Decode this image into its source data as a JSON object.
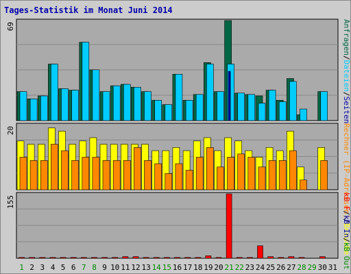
{
  "colors": {
    "frame": "#cccccc",
    "plot_bg": "#aaaaaa",
    "title": "#0000aa",
    "axis_text": "#000000",
    "weekend_day": "#008800",
    "hits": "#006644",
    "files": "#00ccff",
    "pages": "#0000aa",
    "visits": "#ffff00",
    "sites": "#ff8800",
    "kbytes": "#ff0000",
    "kb_in": "#0000aa",
    "kb_out": "#008800",
    "bar_edge": "#000000"
  },
  "chart_data": {
    "type": "bar",
    "title": "Tages-Statistik im Monat Juni 2014",
    "categories": [
      "1",
      "2",
      "3",
      "4",
      "5",
      "6",
      "7",
      "8",
      "9",
      "10",
      "11",
      "12",
      "13",
      "14",
      "15",
      "16",
      "17",
      "18",
      "19",
      "20",
      "21",
      "22",
      "23",
      "24",
      "25",
      "26",
      "27",
      "28",
      "29",
      "30",
      "31"
    ],
    "weekend_days": [
      "1",
      "7",
      "8",
      "14",
      "15",
      "21",
      "22",
      "28",
      "29"
    ],
    "panels": [
      {
        "name": "top",
        "ymax": 69,
        "ymax_label": "69",
        "legend_right": [
          "Anfragen",
          "/",
          "Dateien",
          "/",
          "Seiten"
        ],
        "series": [
          {
            "name": "Anfragen",
            "color": "#006644",
            "values": [
              20,
              15,
              17,
              39,
              22,
              21,
              54,
              35,
              20,
              24,
              25,
              23,
              20,
              14,
              11,
              32,
              14,
              18,
              40,
              20,
              69,
              19,
              18,
              17,
              21,
              14,
              29,
              4,
              0,
              20,
              0
            ]
          },
          {
            "name": "Dateien",
            "color": "#00ccff",
            "values": [
              20,
              15,
              17,
              39,
              22,
              21,
              54,
              35,
              20,
              24,
              25,
              23,
              20,
              14,
              11,
              32,
              14,
              18,
              39,
              20,
              39,
              19,
              18,
              12,
              21,
              13,
              27,
              8,
              0,
              20,
              0
            ]
          },
          {
            "name": "Seiten",
            "color": "#0000aa",
            "values": [
              0,
              0,
              0,
              0,
              0,
              0,
              0,
              0,
              0,
              0,
              0,
              0,
              0,
              0,
              0,
              0,
              0,
              0,
              0,
              0,
              34,
              0,
              0,
              0,
              0,
              0,
              0,
              0,
              0,
              0,
              0
            ]
          }
        ]
      },
      {
        "name": "middle",
        "ymax": 20,
        "ymax_label": "20",
        "legend_right": [
          "Rechner (IP-Adressen)",
          "/",
          "Besuche"
        ],
        "series": [
          {
            "name": "Besuche",
            "color": "#ffff00",
            "values": [
              15,
              14,
              14,
              19,
              18,
              14,
              15,
              16,
              14,
              14,
              14,
              14,
              14,
              12,
              12,
              13,
              12,
              15,
              16,
              12,
              16,
              15,
              12,
              10,
              13,
              12,
              18,
              7,
              0,
              13,
              0
            ]
          },
          {
            "name": "Rechner (IP-Adressen)",
            "color": "#ff8800",
            "values": [
              10,
              9,
              9,
              14,
              12,
              9,
              10,
              10,
              9,
              9,
              9,
              13,
              9,
              8,
              5,
              8,
              6,
              10,
              13,
              7,
              10,
              11,
              10,
              7,
              9,
              9,
              12,
              3,
              0,
              9,
              0
            ]
          }
        ]
      },
      {
        "name": "bottom",
        "ymax": 155,
        "ymax_label": "155",
        "legend_right": [
          "kB F",
          "/",
          "kB In",
          "/",
          "kB Out"
        ],
        "series": [
          {
            "name": "kB F",
            "color": "#ff0000",
            "values": [
              2,
              2,
              2,
              2,
              2,
              2,
              2,
              2,
              2,
              2,
              4,
              4,
              2,
              2,
              2,
              2,
              2,
              2,
              6,
              2,
              155,
              2,
              2,
              30,
              4,
              2,
              4,
              2,
              0,
              4,
              0
            ]
          }
        ]
      }
    ]
  }
}
